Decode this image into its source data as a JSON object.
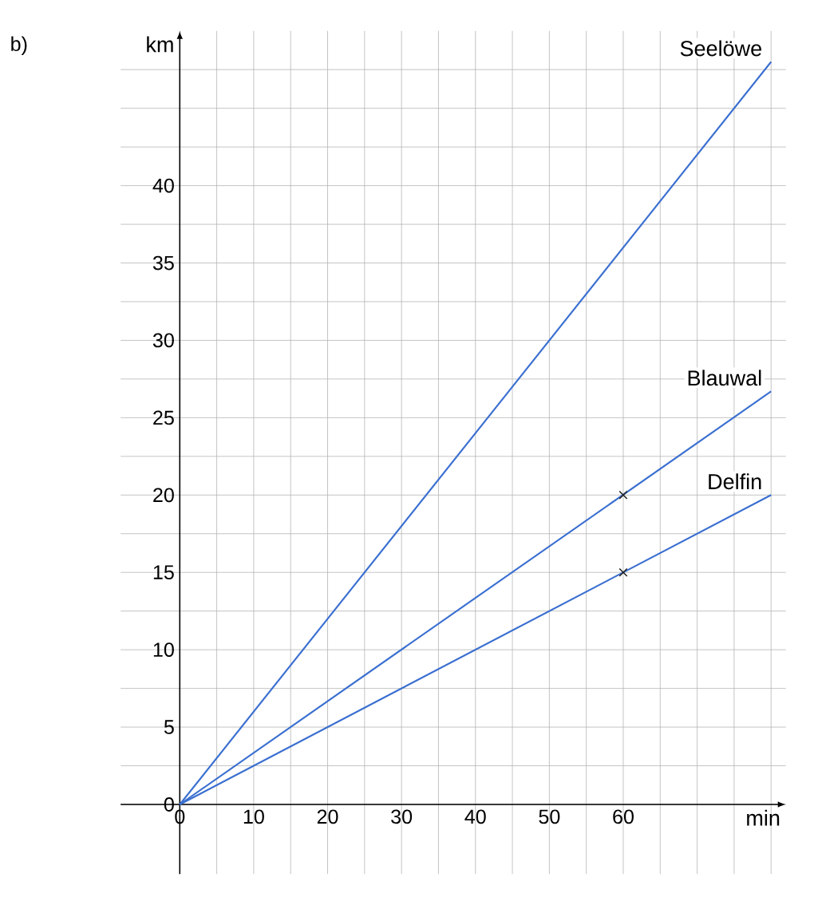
{
  "chart_data": {
    "type": "line",
    "title": "b)",
    "xlabel": "min",
    "ylabel": "km",
    "xlim": [
      -8,
      82
    ],
    "ylim": [
      -4.5,
      50
    ],
    "xticks": [
      0,
      {
        "value": 5,
        "label": null
      },
      10,
      {
        "value": 15,
        "label": null
      },
      20,
      {
        "value": 25,
        "label": null
      },
      30,
      {
        "value": 35,
        "label": null
      },
      40,
      {
        "value": 45,
        "label": null
      },
      50,
      {
        "value": 55,
        "label": null
      },
      60,
      {
        "value": 65,
        "label": null
      },
      {
        "value": 70,
        "label": null
      },
      {
        "value": 75,
        "label": null
      },
      {
        "value": 80,
        "label": null
      }
    ],
    "yticks": [
      0,
      {
        "value": 2.5,
        "label": null
      },
      5,
      {
        "value": 7.5,
        "label": null
      },
      10,
      {
        "value": 12.5,
        "label": null
      },
      15,
      {
        "value": 17.5,
        "label": null
      },
      20,
      {
        "value": 22.5,
        "label": null
      },
      25,
      {
        "value": 27.5,
        "label": null
      },
      30,
      {
        "value": 32.5,
        "label": null
      },
      35,
      {
        "value": 37.5,
        "label": null
      },
      40,
      {
        "value": 42.5,
        "label": null
      },
      {
        "value": 45,
        "label": null
      },
      {
        "value": 47.5,
        "label": null
      }
    ],
    "grid": true,
    "series": [
      {
        "name": "Seelöwe",
        "color": "#3a6fd0",
        "x": [
          0,
          80
        ],
        "values": [
          0,
          48
        ]
      },
      {
        "name": "Blauwal",
        "color": "#3a6fd0",
        "x": [
          0,
          80
        ],
        "values": [
          0,
          26.7
        ]
      },
      {
        "name": "Delfin",
        "color": "#3a6fd0",
        "x": [
          0,
          80
        ],
        "values": [
          0,
          20
        ]
      },
      {
        "type": "scatter",
        "marker": "cross",
        "color": "#222222",
        "x": [
          60,
          60
        ],
        "values": [
          20,
          15
        ]
      }
    ]
  }
}
